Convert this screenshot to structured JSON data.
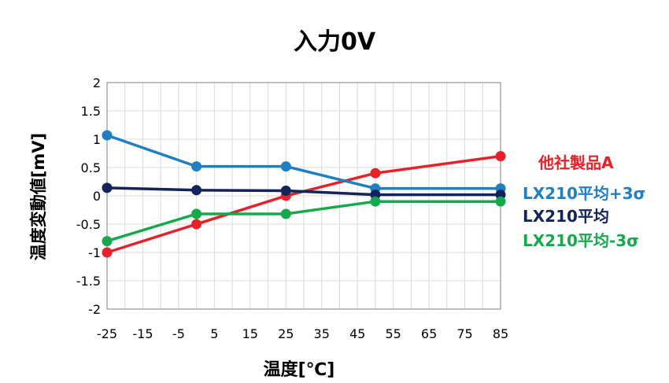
{
  "chart_data": {
    "type": "line",
    "title": "入力0V",
    "xlabel": "温度[℃]",
    "ylabel": "温度変動値[mV]",
    "xlim": [
      -25,
      85
    ],
    "ylim": [
      -2,
      2
    ],
    "x_ticks": [
      "-25",
      "-15",
      "-5",
      "5",
      "15",
      "25",
      "35",
      "45",
      "55",
      "65",
      "75",
      "85"
    ],
    "y_ticks": [
      "2",
      "1.5",
      "1",
      "0.5",
      "0",
      "-0.5",
      "-1",
      "-1.5",
      "-2"
    ],
    "grid": true,
    "legend_position": "right",
    "x": [
      -25,
      0,
      25,
      50,
      85
    ],
    "series": [
      {
        "name": "他社製品A",
        "color": "#e8202a",
        "values": [
          -1.0,
          -0.5,
          0.0,
          0.4,
          0.7
        ]
      },
      {
        "name": "LX210平均+3σ",
        "color": "#1f7fc3",
        "values": [
          1.07,
          0.52,
          0.52,
          0.13,
          0.13
        ]
      },
      {
        "name": "LX210平均",
        "color": "#13235c",
        "values": [
          0.14,
          0.1,
          0.09,
          0.02,
          0.02
        ]
      },
      {
        "name": "LX210平均-3σ",
        "color": "#14aa4b",
        "values": [
          -0.8,
          -0.32,
          -0.32,
          -0.1,
          -0.1
        ]
      }
    ]
  }
}
